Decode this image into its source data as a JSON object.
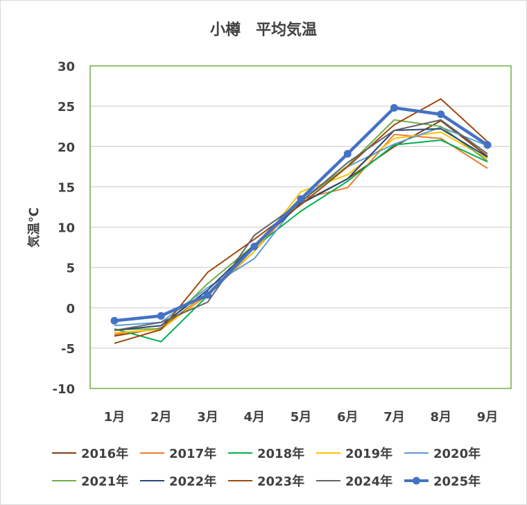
{
  "chart_data": {
    "type": "line",
    "title": "小樽　平均気温",
    "xlabel": "",
    "ylabel": "気温℃",
    "ylim": [
      -10,
      30
    ],
    "yticks": [
      30,
      25,
      20,
      15,
      10,
      5,
      0,
      -5,
      -10
    ],
    "grid": true,
    "legend": "bottom",
    "categories": [
      "1月",
      "2月",
      "3月",
      "4月",
      "5月",
      "6月",
      "7月",
      "8月",
      "9月"
    ],
    "series": [
      {
        "name": "2016年",
        "color": "#843C0C",
        "values": [
          -3.5,
          -2.5,
          1.8,
          7.5,
          13.0,
          16.0,
          20.0,
          23.2,
          18.8
        ]
      },
      {
        "name": "2017年",
        "color": "#ED7D31",
        "values": [
          -3.3,
          -2.6,
          1.6,
          7.0,
          13.5,
          14.9,
          21.5,
          21.0,
          17.3
        ]
      },
      {
        "name": "2018年",
        "color": "#00B050",
        "values": [
          -2.6,
          -4.2,
          1.5,
          7.5,
          12.0,
          15.7,
          20.2,
          20.8,
          18.1
        ]
      },
      {
        "name": "2019年",
        "color": "#FFC000",
        "values": [
          -3.1,
          -2.7,
          1.8,
          7.0,
          14.4,
          16.5,
          21.0,
          21.8,
          18.5
        ]
      },
      {
        "name": "2020年",
        "color": "#5B9BD5",
        "values": [
          -2.2,
          -1.8,
          2.5,
          6.1,
          13.5,
          17.5,
          20.3,
          22.4,
          20.1
        ]
      },
      {
        "name": "2021年",
        "color": "#70AD47",
        "values": [
          -2.7,
          -2.6,
          3.0,
          7.8,
          13.2,
          17.6,
          23.3,
          22.5,
          18.2
        ]
      },
      {
        "name": "2022年",
        "color": "#264478",
        "values": [
          -2.8,
          -2.2,
          2.2,
          7.8,
          12.9,
          16.0,
          22.0,
          22.2,
          18.7
        ]
      },
      {
        "name": "2023年",
        "color": "#9E480E",
        "values": [
          -4.4,
          -2.7,
          4.4,
          8.5,
          12.8,
          17.5,
          22.7,
          25.9,
          20.6
        ]
      },
      {
        "name": "2024年",
        "color": "#636363",
        "values": [
          -2.8,
          -1.8,
          0.7,
          9.0,
          13.1,
          18.0,
          22.0,
          23.3,
          19.1
        ]
      },
      {
        "name": "2025年",
        "color": "#4472C4",
        "values": [
          -1.6,
          -1.0,
          1.6,
          7.6,
          13.5,
          19.1,
          24.8,
          24.0,
          20.2
        ],
        "markers": true
      }
    ]
  }
}
